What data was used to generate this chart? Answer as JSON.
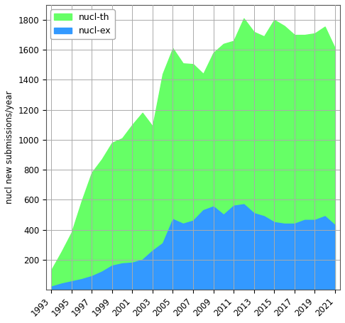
{
  "years": [
    1993,
    1994,
    1995,
    1996,
    1997,
    1998,
    1999,
    2000,
    2001,
    2002,
    2003,
    2004,
    2005,
    2006,
    2007,
    2008,
    2009,
    2010,
    2011,
    2012,
    2013,
    2014,
    2015,
    2016,
    2017,
    2018,
    2019,
    2020,
    2021
  ],
  "nucl_ex": [
    20,
    40,
    55,
    70,
    90,
    120,
    160,
    175,
    180,
    200,
    260,
    310,
    470,
    440,
    460,
    530,
    555,
    500,
    560,
    570,
    510,
    490,
    450,
    440,
    440,
    465,
    465,
    490,
    430
  ],
  "total": [
    130,
    250,
    380,
    590,
    780,
    870,
    980,
    1010,
    1100,
    1180,
    1090,
    1440,
    1610,
    1510,
    1505,
    1440,
    1580,
    1640,
    1660,
    1810,
    1720,
    1690,
    1800,
    1760,
    1700,
    1700,
    1710,
    1755,
    1610
  ],
  "color_th": "#66ff66",
  "color_ex": "#3399ff",
  "ylabel": "nucl new submissions/year",
  "ylim": [
    0,
    1900
  ],
  "yticks": [
    200,
    400,
    600,
    800,
    1000,
    1200,
    1400,
    1600,
    1800
  ],
  "xtick_years": [
    1993,
    1995,
    1997,
    1999,
    2001,
    2003,
    2005,
    2007,
    2009,
    2011,
    2013,
    2015,
    2017,
    2019,
    2021
  ],
  "legend_th": "nucl-th",
  "legend_ex": "nucl-ex",
  "bg_color": "#ffffff",
  "grid_color": "#aaaaaa",
  "xlim_left": 1992.5,
  "xlim_right": 2021.5
}
